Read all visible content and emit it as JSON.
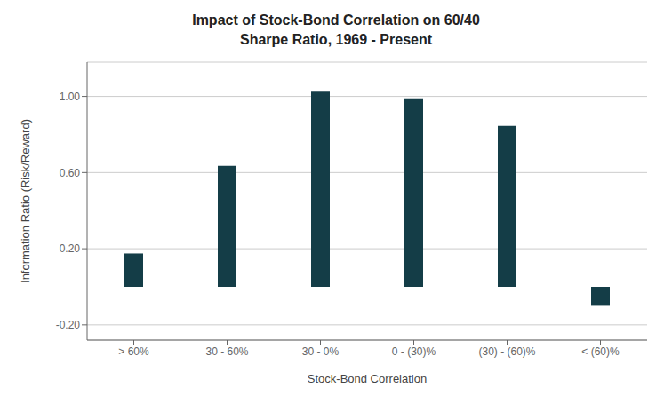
{
  "chart_data": {
    "type": "bar",
    "title": "Impact of Stock-Bond Correlation on 60/40\nSharpe Ratio, 1969 - Present",
    "xlabel": "Stock-Bond Correlation",
    "ylabel": "Information Ratio (Risk/Reward)",
    "categories": [
      "> 60%",
      "30 - 60%",
      "30 - 0%",
      "0 - (30)%",
      "(30) - (60)%",
      "< (60)%"
    ],
    "values": [
      0.175,
      0.635,
      1.025,
      0.99,
      0.845,
      -0.1
    ],
    "color": "#143d47",
    "ylim": [
      -0.28,
      1.18
    ],
    "yticks": [
      {
        "value": -0.2,
        "label": "-0.20"
      },
      {
        "value": 0.2,
        "label": "0.20"
      },
      {
        "value": 0.6,
        "label": "0.60"
      },
      {
        "value": 1.0,
        "label": "1.00"
      }
    ],
    "grid": true
  }
}
